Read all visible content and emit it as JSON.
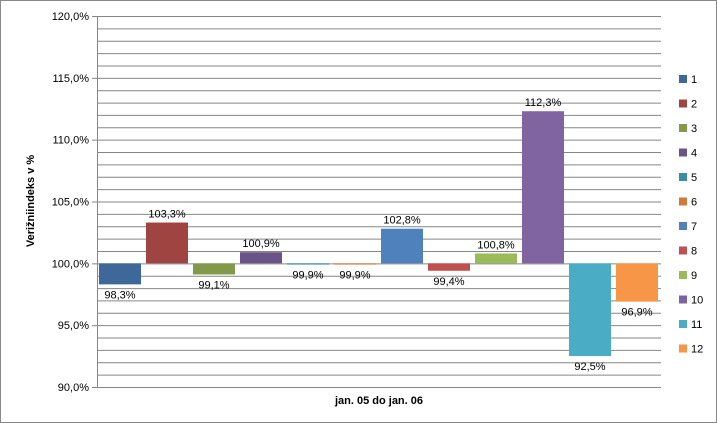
{
  "chart_data": {
    "type": "bar",
    "title": "",
    "xlabel": "jan. 05 do jan. 06",
    "ylabel": "Verižniindeks v %",
    "ylim": [
      90,
      120
    ],
    "baseline": 100,
    "y_major_step": 5,
    "y_minor_step": 1,
    "y_ticks": [
      "90,0%",
      "95,0%",
      "100,0%",
      "105,0%",
      "110,0%",
      "115,0%",
      "120,0%"
    ],
    "grid": true,
    "legend_position": "right",
    "series": [
      {
        "name": "1",
        "values": [
          98.3
        ],
        "label": "98,3%",
        "color": "#3E6899"
      },
      {
        "name": "2",
        "values": [
          103.3
        ],
        "label": "103,3%",
        "color": "#A04442"
      },
      {
        "name": "3",
        "values": [
          99.1
        ],
        "label": "99,1%",
        "color": "#82994A"
      },
      {
        "name": "4",
        "values": [
          100.9
        ],
        "label": "100,9%",
        "color": "#6A5387"
      },
      {
        "name": "5",
        "values": [
          99.9
        ],
        "label": "99,9%",
        "color": "#3A8EA4"
      },
      {
        "name": "6",
        "values": [
          99.9
        ],
        "label": "99,9%",
        "color": "#CF7C3A"
      },
      {
        "name": "7",
        "values": [
          102.8
        ],
        "label": "102,8%",
        "color": "#4F81BD"
      },
      {
        "name": "8",
        "values": [
          99.4
        ],
        "label": "99,4%",
        "color": "#C0504D"
      },
      {
        "name": "9",
        "values": [
          100.8
        ],
        "label": "100,8%",
        "color": "#9BBB59"
      },
      {
        "name": "10",
        "values": [
          112.3
        ],
        "label": "112,3%",
        "color": "#8064A2"
      },
      {
        "name": "11",
        "values": [
          92.5
        ],
        "label": "92,5%",
        "color": "#4BACC6"
      },
      {
        "name": "12",
        "values": [
          96.9
        ],
        "label": "96,9%",
        "color": "#F79646"
      }
    ]
  }
}
